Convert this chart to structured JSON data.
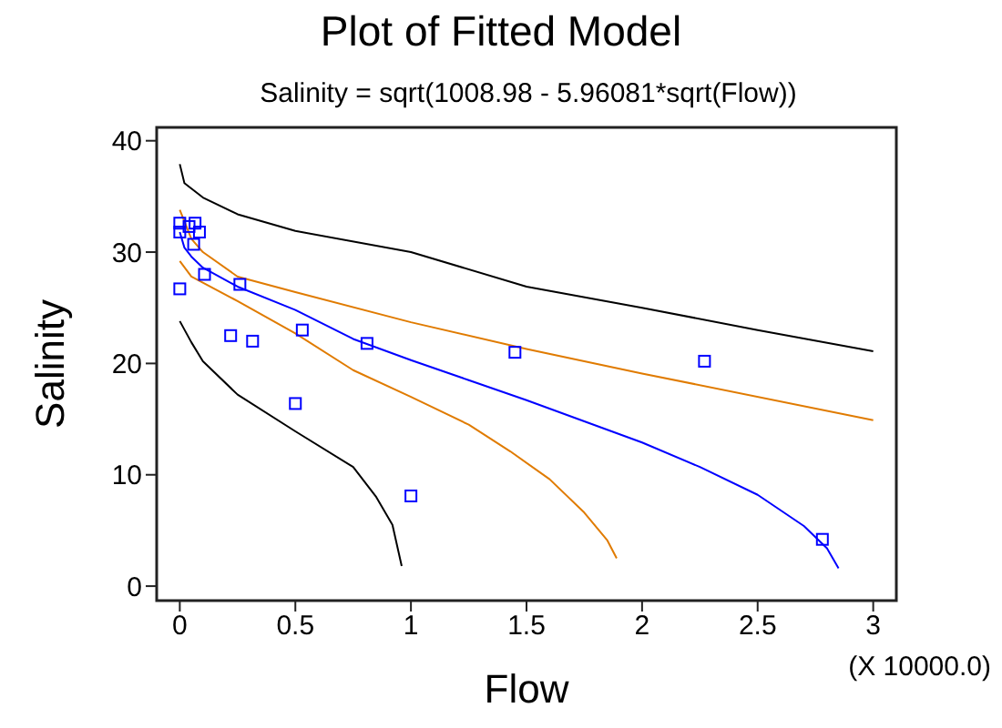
{
  "chart_data": {
    "type": "line",
    "title": "Plot of Fitted Model",
    "subtitle": "Salinity = sqrt(1008.98 - 5.96081*sqrt(Flow))",
    "xlabel": "Flow",
    "ylabel": "Salinity",
    "annotations": [
      "(X 10000.0)"
    ],
    "xlim": [
      -0.1,
      3.1
    ],
    "ylim": [
      -1.3,
      41.2
    ],
    "xticks": [
      0,
      0.5,
      1,
      1.5,
      2,
      2.5,
      3
    ],
    "yticks": [
      0,
      10,
      20,
      30,
      40
    ],
    "line_style": "solid",
    "series": [
      {
        "color": "#000000",
        "x": [
          0,
          0.02,
          0.1,
          0.25,
          0.5,
          1,
          1.5,
          2,
          2.5,
          3
        ],
        "values": [
          37.9,
          36.2,
          34.9,
          33.4,
          31.9,
          30.0,
          26.9,
          25.0,
          23.0,
          21.1
        ]
      },
      {
        "color": "#e07b00",
        "x": [
          0,
          0.05,
          0.1,
          0.25,
          0.5,
          1,
          1.5,
          2,
          3
        ],
        "values": [
          33.8,
          31.2,
          30.0,
          27.8,
          26.4,
          23.7,
          21.3,
          19.1,
          14.9
        ]
      },
      {
        "color": "#0000ff",
        "x": [
          0,
          0.02,
          0.05,
          0.1,
          0.25,
          0.5,
          0.75,
          1,
          1.25,
          1.5,
          1.75,
          2,
          2.25,
          2.5,
          2.7,
          2.8,
          2.85
        ],
        "values": [
          31.8,
          30.4,
          29.6,
          28.6,
          26.9,
          24.8,
          22.2,
          20.3,
          18.5,
          16.7,
          14.8,
          12.9,
          10.7,
          8.2,
          5.4,
          3.4,
          1.6
        ]
      },
      {
        "color": "#e07b00",
        "x": [
          0,
          0.05,
          0.25,
          0.5,
          0.75,
          1,
          1.25,
          1.43,
          1.6,
          1.75,
          1.85,
          1.89
        ],
        "values": [
          29.2,
          27.8,
          25.6,
          22.7,
          19.4,
          17.0,
          14.5,
          12.1,
          9.6,
          6.6,
          4.1,
          2.5
        ]
      },
      {
        "color": "#000000",
        "x": [
          0,
          0.05,
          0.1,
          0.25,
          0.5,
          0.75,
          0.85,
          0.92,
          0.96
        ],
        "values": [
          23.8,
          21.9,
          20.2,
          17.2,
          13.9,
          10.7,
          8.0,
          5.5,
          1.8
        ]
      },
      {
        "type": "scatter",
        "color": "#0000ff",
        "marker": "square",
        "x": [
          0,
          0.04,
          0.066,
          0,
          0.085,
          0.06,
          0,
          0.107,
          0.26,
          0.22,
          0.315,
          0.53,
          0.81,
          0.5,
          1.0,
          1.45,
          2.27,
          2.78
        ],
        "values": [
          32.6,
          32.3,
          32.6,
          31.8,
          31.8,
          30.7,
          26.7,
          28.0,
          27.1,
          22.5,
          22.0,
          23.0,
          21.8,
          16.4,
          8.1,
          21.0,
          20.2,
          4.2
        ]
      }
    ]
  }
}
